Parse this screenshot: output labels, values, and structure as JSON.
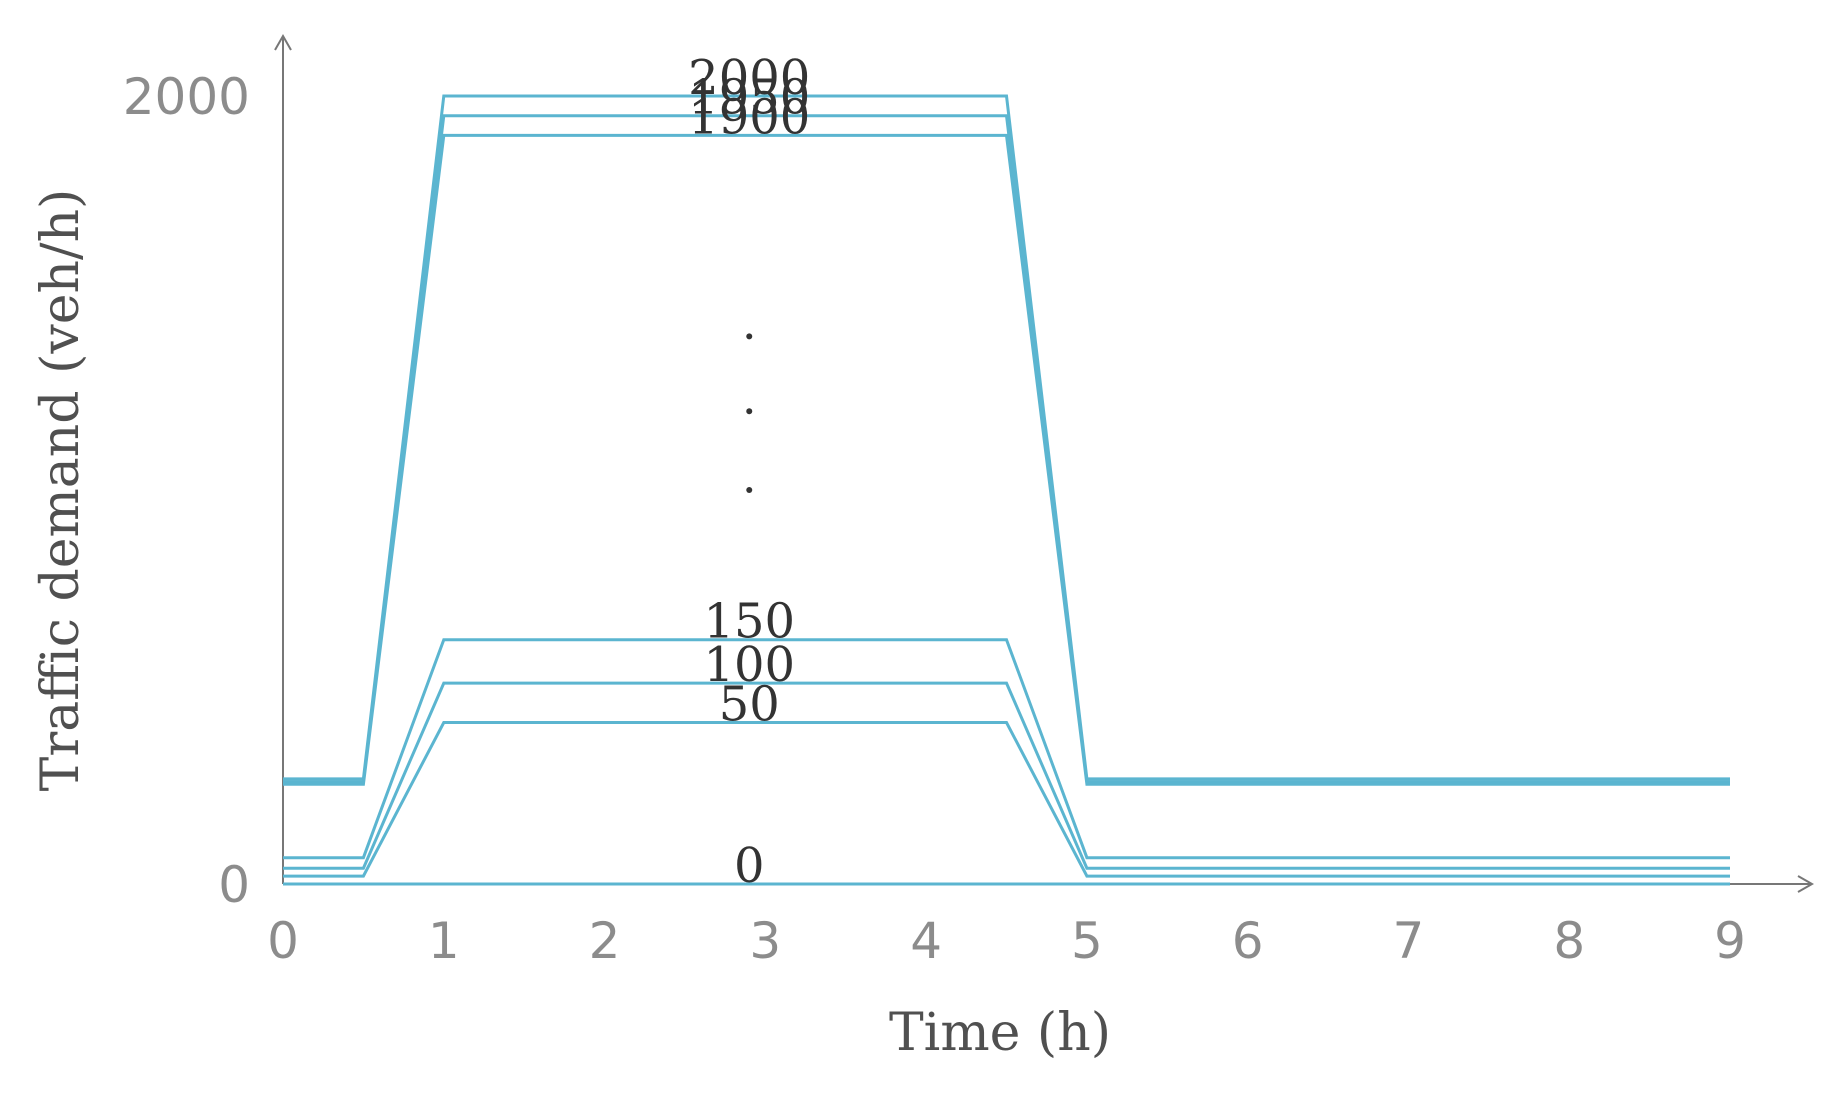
{
  "chart_data": {
    "type": "line",
    "xlabel": "Time (h)",
    "ylabel": "Traffic demand (veh/h)",
    "xlim": [
      0,
      9
    ],
    "ylim": [
      0,
      2000
    ],
    "x_ticks": [
      "0",
      "1",
      "2",
      "3",
      "4",
      "5",
      "6",
      "7",
      "8",
      "9"
    ],
    "y_ticks": [
      "0",
      "2000"
    ],
    "grid": false,
    "color": "#5bb5d0",
    "series": [
      {
        "name": "2000",
        "x": [
          0,
          0.5,
          1,
          4.5,
          5,
          9
        ],
        "values": [
          266.67,
          266.67,
          2000,
          2000,
          266.67,
          266.67
        ]
      },
      {
        "name": "1950",
        "x": [
          0,
          0.5,
          1,
          4.5,
          5,
          9
        ],
        "values": [
          260,
          260,
          1950,
          1950,
          260,
          260
        ]
      },
      {
        "name": "1900",
        "x": [
          0,
          0.5,
          1,
          4.5,
          5,
          9
        ],
        "values": [
          253.33,
          253.33,
          1900,
          1900,
          253.33,
          253.33
        ]
      },
      {
        "name": "150",
        "x": [
          0,
          0.5,
          1,
          4.5,
          5,
          9
        ],
        "values": [
          66.67,
          66.67,
          620,
          620,
          66.67,
          66.67
        ]
      },
      {
        "name": "100",
        "x": [
          0,
          0.5,
          1,
          4.5,
          5,
          9
        ],
        "values": [
          40,
          40,
          510,
          510,
          40,
          40
        ]
      },
      {
        "name": "50",
        "x": [
          0,
          0.5,
          1,
          4.5,
          5,
          9
        ],
        "values": [
          20,
          20,
          410,
          410,
          20,
          20
        ]
      },
      {
        "name": "0",
        "x": [
          0,
          0.5,
          1,
          4.5,
          5,
          9
        ],
        "values": [
          0,
          0,
          0,
          0,
          0,
          0
        ]
      }
    ]
  }
}
